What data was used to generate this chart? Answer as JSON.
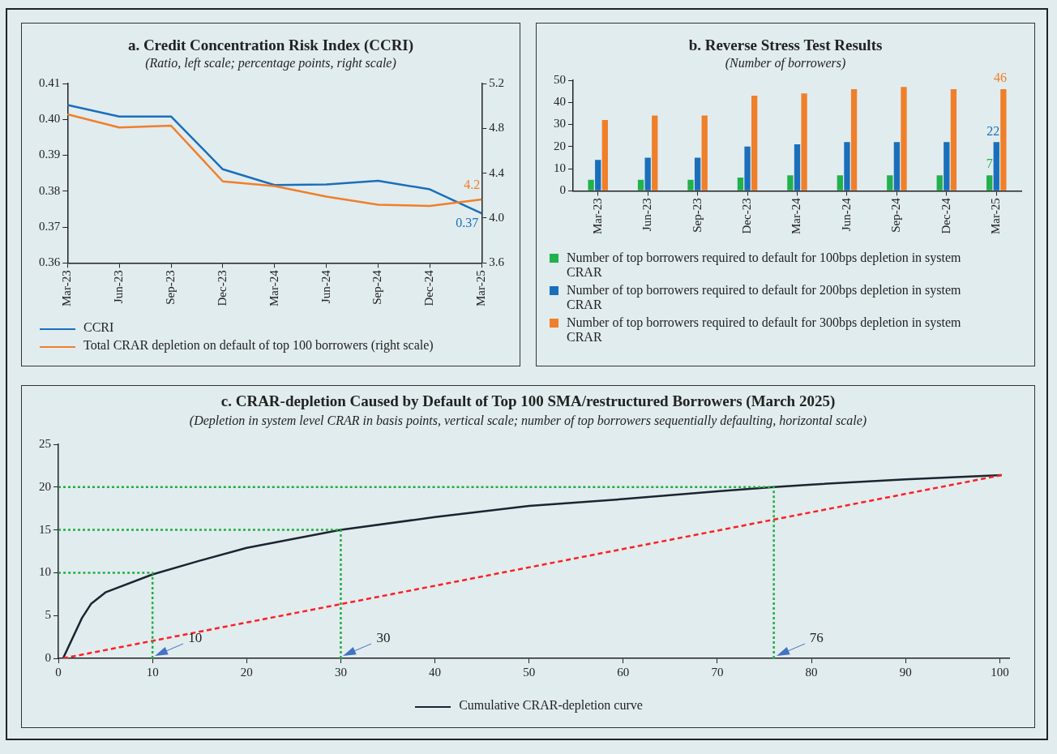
{
  "chart_data": [
    {
      "type": "line",
      "title": "a. Credit Concentration Risk Index (CCRI)",
      "subtitle": "(Ratio, left scale; percentage points, right scale)",
      "categories": [
        "Mar-23",
        "Jun-23",
        "Sep-23",
        "Dec-23",
        "Mar-24",
        "Jun-24",
        "Sep-24",
        "Dec-24",
        "Mar-25"
      ],
      "series": [
        {
          "name": "CCRI",
          "color": "#1a6fba",
          "values": [
            0.404,
            0.4008,
            0.4008,
            0.3861,
            0.3817,
            0.3819,
            0.3829,
            0.3805,
            0.3738
          ],
          "value_labels": [
            null,
            null,
            null,
            null,
            null,
            null,
            null,
            null,
            "0.37"
          ]
        },
        {
          "name": "Total CRAR depletion on default of top 100 borrowers (right scale)",
          "color": "#f07f2a",
          "axis": "y2",
          "values": [
            4.925,
            4.808,
            4.824,
            4.327,
            4.286,
            4.191,
            4.119,
            4.109,
            4.166
          ],
          "value_labels": [
            null,
            null,
            null,
            null,
            null,
            null,
            null,
            null,
            "4.2"
          ]
        }
      ],
      "ylim": [
        0.36,
        0.41
      ],
      "yticks": [
        0.36,
        0.37,
        0.38,
        0.39,
        {
          "value": 0.4,
          "label": "0.40"
        },
        0.41
      ],
      "y2lim": [
        3.6,
        5.2
      ],
      "y2ticks": [
        3.6,
        {
          "value": 4,
          "label": "4.0"
        },
        4.4,
        4.8,
        5.2
      ],
      "marker": "none",
      "legend": "bottom left"
    },
    {
      "type": "bar",
      "title": "b. Reverse Stress Test Results",
      "subtitle": "(Number of borrowers)",
      "categories": [
        "Mar-23",
        "Jun-23",
        "Sep-23",
        "Dec-23",
        "Mar-24",
        "Jun-24",
        "Sep-24",
        "Dec-24",
        "Mar-25"
      ],
      "series": [
        {
          "name": "Number of top borrowers required to default for 100bps depletion in system CRAR",
          "color": "#22b14c",
          "values": [
            5,
            5,
            5,
            6,
            7,
            7,
            7,
            7,
            7
          ],
          "value_labels": [
            null,
            null,
            null,
            null,
            null,
            null,
            null,
            null,
            "7"
          ]
        },
        {
          "name": "Number of top borrowers required to default for 200bps depletion in system CRAR",
          "color": "#1a6fba",
          "values": [
            14,
            15,
            15,
            20,
            21,
            22,
            22,
            22,
            22
          ],
          "value_labels": [
            null,
            null,
            null,
            null,
            null,
            null,
            null,
            null,
            "22"
          ]
        },
        {
          "name": "Number of top borrowers required to default for 300bps depletion in system CRAR",
          "color": "#f07f2a",
          "values": [
            32,
            34,
            34,
            43,
            44,
            46,
            47,
            46,
            46
          ],
          "value_labels": [
            null,
            null,
            null,
            null,
            null,
            null,
            null,
            null,
            "46"
          ]
        }
      ],
      "ylim": [
        0,
        50
      ],
      "yticks": [
        0,
        10,
        20,
        30,
        40,
        50
      ],
      "legend": "bottom"
    },
    {
      "type": "line",
      "title": "c. CRAR-depletion Caused by Default of Top 100 SMA/restructured Borrowers (March 2025)",
      "subtitle": "(Depletion in system level CRAR in basis points, vertical scale; number of top borrowers sequentially defaulting, horizontal scale)",
      "series": [
        {
          "name": "Cumulative CRAR-depletion curve",
          "color": "#1c2430",
          "x": [
            0.5,
            2.5,
            3.5,
            5,
            10,
            15,
            20,
            30,
            40,
            50,
            60,
            70,
            76,
            80,
            90,
            100.2
          ],
          "values": [
            0,
            4.7,
            6.4,
            7.7,
            9.8,
            11.4,
            12.9,
            15,
            16.5,
            17.8,
            18.6,
            19.5,
            20,
            20.3,
            20.9,
            21.4
          ]
        },
        {
          "color": "#ff2020",
          "line_style": "dashed",
          "x": [
            100.2,
            0.5
          ],
          "values": [
            21.4,
            0
          ]
        },
        {
          "color": "#1fae3f",
          "line_style": "dotted",
          "x": [
            0,
            10,
            10
          ],
          "values": [
            10,
            10,
            0
          ]
        },
        {
          "color": "#1fae3f",
          "line_style": "dotted",
          "x": [
            0,
            30,
            30
          ],
          "values": [
            15,
            15,
            0
          ]
        },
        {
          "color": "#1fae3f",
          "line_style": "dotted",
          "x": [
            0,
            76,
            76
          ],
          "values": [
            20,
            20,
            0
          ]
        }
      ],
      "xlim": [
        0,
        101
      ],
      "xticks": [
        0,
        10,
        20,
        30,
        40,
        50,
        60,
        70,
        80,
        90,
        100
      ],
      "ylim": [
        0,
        25
      ],
      "yticks": [
        0,
        5,
        10,
        15,
        20,
        25
      ],
      "annotations": [
        {
          "text": "10",
          "x": 10,
          "y": 0
        },
        {
          "text": "30",
          "x": 30,
          "y": 0
        },
        {
          "text": "76",
          "x": 76,
          "y": 0
        }
      ],
      "marker": "none",
      "legend": "bottom"
    }
  ]
}
